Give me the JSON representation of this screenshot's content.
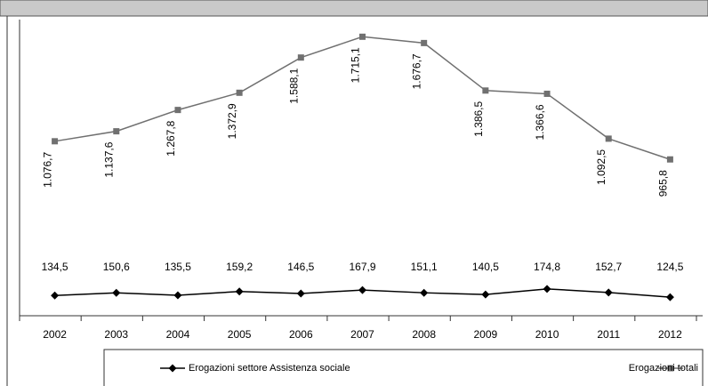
{
  "chart_data": {
    "type": "line",
    "categories": [
      "2002",
      "2003",
      "2004",
      "2005",
      "2006",
      "2007",
      "2008",
      "2009",
      "2010",
      "2011",
      "2012"
    ],
    "series": [
      {
        "name": "Erogazioni settore Assistenza sociale",
        "color": "#000000",
        "marker": "diamond",
        "values": [
          134.5,
          150.6,
          135.5,
          159.2,
          146.5,
          167.9,
          151.1,
          140.5,
          174.8,
          152.7,
          124.5
        ],
        "value_labels": [
          "134,5",
          "150,6",
          "135,5",
          "159,2",
          "146,5",
          "167,9",
          "151,1",
          "140,5",
          "174,8",
          "152,7",
          "124,5"
        ]
      },
      {
        "name": "Erogazioni totali",
        "color": "#707070",
        "marker": "square",
        "values": [
          1076.7,
          1137.6,
          1267.8,
          1372.9,
          1588.1,
          1715.1,
          1676.7,
          1386.5,
          1366.6,
          1092.5,
          965.8
        ],
        "value_labels": [
          "1.076,7",
          "1.137,6",
          "1.267,8",
          "1.372,9",
          "1.588,1",
          "1.715,1",
          "1.676,7",
          "1.386,5",
          "1.366,6",
          "1.092,5",
          "965,8"
        ]
      }
    ],
    "ylim": [
      0,
      1820
    ]
  }
}
